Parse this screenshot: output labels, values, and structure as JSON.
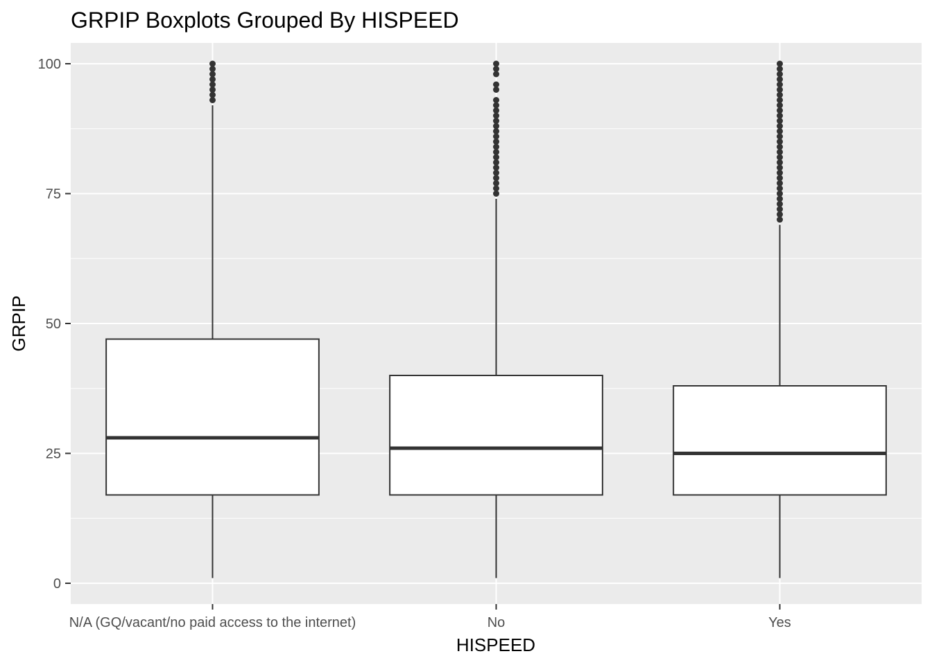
{
  "chart_data": {
    "type": "boxplot",
    "title": "GRPIP Boxplots Grouped By HISPEED",
    "xlabel": "HISPEED",
    "ylabel": "GRPIP",
    "ylim": [
      -4,
      104
    ],
    "yticks": [
      0,
      25,
      50,
      75,
      100
    ],
    "grid": true,
    "categories": [
      "N/A (GQ/vacant/no paid access to the internet)",
      "No",
      "Yes"
    ],
    "boxes": [
      {
        "category": "N/A (GQ/vacant/no paid access to the internet)",
        "whisker_low": 1,
        "q1": 17,
        "median": 28,
        "q3": 47,
        "whisker_high": 92,
        "outliers": [
          93,
          94,
          95,
          96,
          97,
          98,
          99,
          100
        ]
      },
      {
        "category": "No",
        "whisker_low": 1,
        "q1": 17,
        "median": 26,
        "q3": 40,
        "whisker_high": 74,
        "outliers": [
          75,
          76,
          77,
          78,
          79,
          80,
          81,
          82,
          83,
          84,
          85,
          86,
          87,
          88,
          89,
          90,
          91,
          92,
          93,
          95,
          96,
          98,
          99,
          100
        ]
      },
      {
        "category": "Yes",
        "whisker_low": 1,
        "q1": 17,
        "median": 25,
        "q3": 38,
        "whisker_high": 69,
        "outliers": [
          70,
          71,
          72,
          73,
          74,
          75,
          76,
          77,
          78,
          79,
          80,
          81,
          82,
          83,
          84,
          85,
          86,
          87,
          88,
          89,
          90,
          91,
          92,
          93,
          94,
          95,
          96,
          97,
          98,
          99,
          100
        ]
      }
    ],
    "colors": {
      "panel_background": "#ebebeb",
      "grid": "#ffffff",
      "box_fill": "#ffffff",
      "box_stroke": "#333333",
      "outlier": "#333333",
      "tick_text": "#4d4d4d",
      "label_text": "#000000"
    }
  }
}
